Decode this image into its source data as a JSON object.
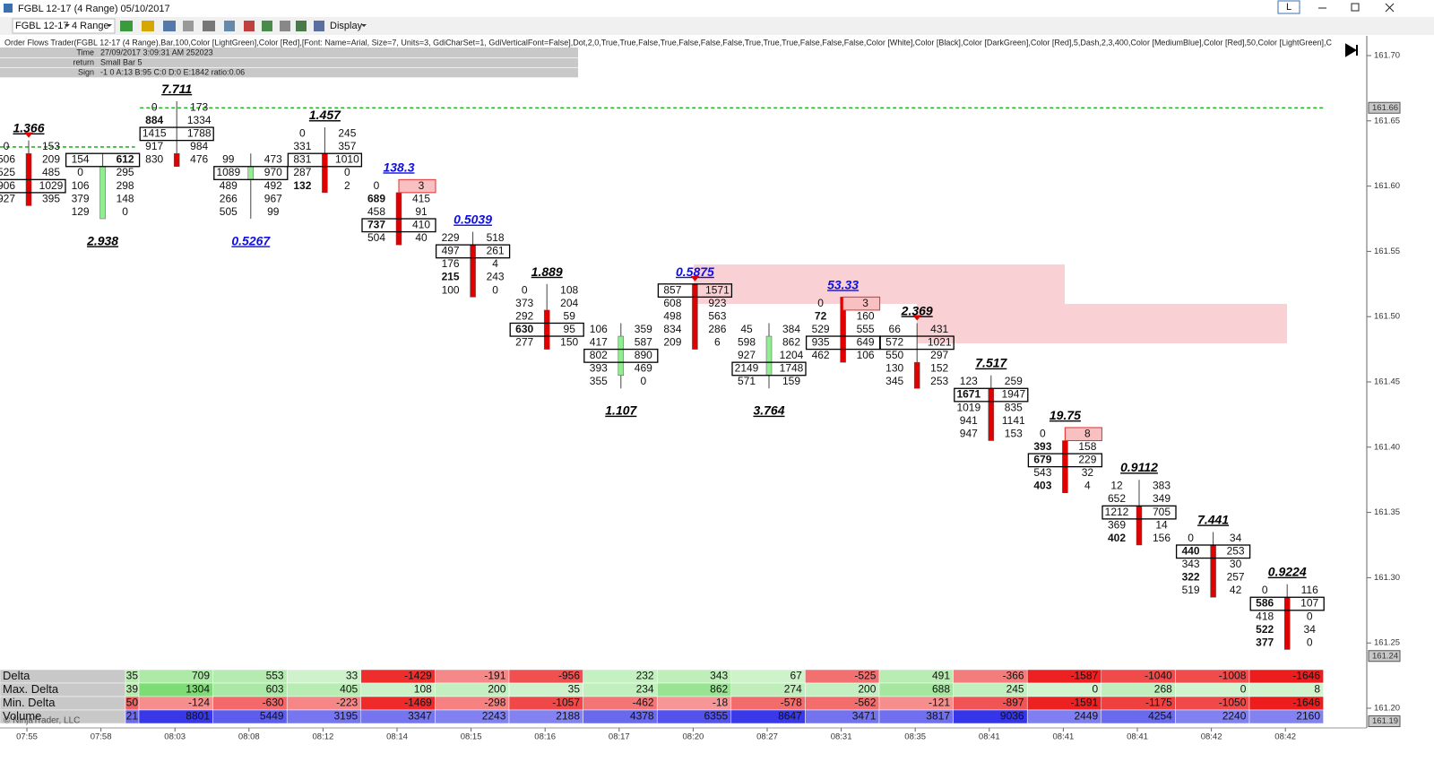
{
  "window": {
    "title": "FGBL 12-17 (4 Range)  05/10/2017",
    "badge": "L"
  },
  "toolbar": {
    "instrument": "FGBL 12-17",
    "interval": "4 Range",
    "display": "Display"
  },
  "indicator_label": "Order Flows Trader(FGBL 12-17 (4 Range),Bar,100,Color [LightGreen],Color [Red],[Font: Name=Arial, Size=7, Units=3, GdiCharSet=1, GdiVerticalFont=False],Dot,2,0,True,True,False,True,False,False,False,True,True,True,False,False,False,Color [White],Color [Black],Color [DarkGreen],Color [Red],5,Dash,2,3,400,Color [MediumBlue],Color [Red],50,Color [LightGreen],C",
  "info": [
    [
      "Time",
      "27/09/2017 3:09:31 AM 252023"
    ],
    [
      "return",
      "Small Bar 5"
    ],
    [
      "Sign",
      "-1 0 A:13 B:95 C:0 D:0 E:1842 ratio:0.06"
    ]
  ],
  "chart_data": {
    "type": "footprint",
    "ylim": [
      161.2,
      161.7
    ],
    "tick_size": 0.01,
    "yticks": [
      {
        "value": 161.7,
        "label": "161.70"
      },
      {
        "value": 161.65,
        "label": "161.65"
      },
      {
        "value": 161.6,
        "label": "161.60"
      },
      {
        "value": 161.55,
        "label": "161.55"
      },
      {
        "value": 161.5,
        "label": "161.50"
      },
      {
        "value": 161.45,
        "label": "161.45"
      },
      {
        "value": 161.4,
        "label": "161.40"
      },
      {
        "value": 161.35,
        "label": "161.35"
      },
      {
        "value": 161.3,
        "label": "161.30"
      },
      {
        "value": 161.25,
        "label": "161.25"
      },
      {
        "value": 161.2,
        "label": "161.20"
      }
    ],
    "price_markers": [
      {
        "value": 161.66,
        "label": "161.66"
      },
      {
        "value": 161.24,
        "label": "161.24"
      },
      {
        "value": 161.19,
        "label": "161.19"
      }
    ],
    "time_axis": [
      "07:55",
      "07:58",
      "08:03",
      "08:08",
      "08:12",
      "08:14",
      "08:15",
      "08:16",
      "08:17",
      "08:20",
      "08:27",
      "08:31",
      "08:35",
      "08:41",
      "08:41",
      "08:41",
      "08:42",
      "08:42"
    ],
    "lines": [
      {
        "price": 161.66,
        "from_bar": 2,
        "color": "#00aa00"
      },
      {
        "price": 161.63,
        "from_bar": 0,
        "to_bar": 1,
        "color": "#00aa00"
      }
    ],
    "imbalance_color": "#e00000",
    "bars": [
      {
        "ratio": "1.366",
        "ratio_color": "#000000",
        "ratio_pos": "above",
        "high": 161.63,
        "rows": [
          [
            0,
            153
          ],
          [
            506,
            209
          ],
          [
            525,
            485
          ],
          [
            906,
            1029
          ],
          [
            927,
            395
          ]
        ],
        "poc": 3,
        "open": 161.62,
        "close": 161.59,
        "candle_color": "#e00000",
        "red_bids": [],
        "down_arrow": true
      },
      {
        "ratio": "2.938",
        "ratio_color": "#000000",
        "ratio_pos": "below",
        "high": 161.62,
        "rows": [
          [
            154,
            612
          ],
          [
            0,
            295
          ],
          [
            106,
            298
          ],
          [
            379,
            148
          ],
          [
            129,
            0
          ]
        ],
        "poc": 0,
        "open": 161.58,
        "close": 161.61,
        "candle_color": "#90ee90",
        "red_bids": [],
        "blue_asks": [
          0
        ]
      },
      {
        "ratio": "7.711",
        "ratio_color": "#000000",
        "ratio_pos": "above",
        "high": 161.66,
        "rows": [
          [
            0,
            173
          ],
          [
            884,
            1334
          ],
          [
            1415,
            1788
          ],
          [
            917,
            984
          ],
          [
            830,
            476
          ]
        ],
        "poc": 2,
        "open": 161.62,
        "close": 161.62,
        "candle_color": "#e00000",
        "red_bids": [
          1
        ]
      },
      {
        "ratio": "0.5267",
        "ratio_color": "#1010e0",
        "ratio_pos": "below",
        "high": 161.62,
        "rows": [
          [
            99,
            473
          ],
          [
            1089,
            970
          ],
          [
            489,
            492
          ],
          [
            266,
            967
          ],
          [
            505,
            99
          ]
        ],
        "poc": 1,
        "open": 161.61,
        "close": 161.61,
        "candle_color": "#90ee90",
        "red_bids": []
      },
      {
        "ratio": "1.457",
        "ratio_color": "#000000",
        "ratio_pos": "above",
        "high": 161.64,
        "rows": [
          [
            0,
            245
          ],
          [
            331,
            357
          ],
          [
            831,
            1010
          ],
          [
            287,
            0
          ],
          [
            132,
            2
          ]
        ],
        "poc": 2,
        "open": 161.62,
        "close": 161.6,
        "candle_color": "#e00000",
        "red_bids": [
          4
        ]
      },
      {
        "ratio": "138.3",
        "ratio_color": "#1010e0",
        "ratio_pos": "above",
        "high": 161.6,
        "rows": [
          [
            0,
            3
          ],
          [
            689,
            415
          ],
          [
            458,
            91
          ],
          [
            737,
            410
          ],
          [
            504,
            40
          ]
        ],
        "poc": 3,
        "open": 161.59,
        "close": 161.56,
        "candle_color": "#e00000",
        "red_bids": [
          1,
          3
        ],
        "unfinished": true
      },
      {
        "ratio": "0.5039",
        "ratio_color": "#1010e0",
        "ratio_pos": "above",
        "high": 161.56,
        "rows": [
          [
            229,
            518
          ],
          [
            497,
            261
          ],
          [
            176,
            4
          ],
          [
            215,
            243
          ],
          [
            100,
            0
          ]
        ],
        "poc": 1,
        "open": 161.55,
        "close": 161.52,
        "candle_color": "#e00000",
        "red_bids": [
          3
        ]
      },
      {
        "ratio": "1.889",
        "ratio_color": "#000000",
        "ratio_pos": "above",
        "high": 161.52,
        "rows": [
          [
            0,
            108
          ],
          [
            373,
            204
          ],
          [
            292,
            59
          ],
          [
            630,
            95
          ],
          [
            277,
            150
          ]
        ],
        "poc": 3,
        "open": 161.5,
        "close": 161.48,
        "candle_color": "#e00000",
        "red_bids": [
          3
        ]
      },
      {
        "ratio": "1.107",
        "ratio_color": "#000000",
        "ratio_pos": "below",
        "high": 161.49,
        "rows": [
          [
            106,
            359
          ],
          [
            417,
            587
          ],
          [
            802,
            890
          ],
          [
            393,
            469
          ],
          [
            355,
            0
          ]
        ],
        "poc": 2,
        "open": 161.46,
        "close": 161.48,
        "candle_color": "#90ee90",
        "red_bids": []
      },
      {
        "ratio": "0.5875",
        "ratio_color": "#1010e0",
        "ratio_pos": "above",
        "high": 161.52,
        "rows": [
          [
            857,
            1571
          ],
          [
            608,
            923
          ],
          [
            498,
            563
          ],
          [
            834,
            286
          ],
          [
            209,
            6
          ]
        ],
        "poc": 0,
        "open": 161.52,
        "close": 161.48,
        "candle_color": "#e00000",
        "red_bids": [],
        "down_arrow": true
      },
      {
        "ratio": "3.764",
        "ratio_color": "#000000",
        "ratio_pos": "below",
        "high": 161.49,
        "rows": [
          [
            45,
            384
          ],
          [
            598,
            862
          ],
          [
            927,
            1204
          ],
          [
            2149,
            1748
          ],
          [
            571,
            159
          ]
        ],
        "poc": 3,
        "open": 161.46,
        "close": 161.48,
        "candle_color": "#90ee90",
        "red_bids": []
      },
      {
        "ratio": "53.33",
        "ratio_color": "#1010e0",
        "ratio_pos": "above",
        "high": 161.51,
        "rows": [
          [
            0,
            3
          ],
          [
            72,
            160
          ],
          [
            529,
            555
          ],
          [
            935,
            649
          ],
          [
            462,
            106
          ]
        ],
        "poc": 3,
        "open": 161.51,
        "close": 161.47,
        "candle_color": "#e00000",
        "red_bids": [
          1
        ],
        "unfinished": true
      },
      {
        "ratio": "2.369",
        "ratio_color": "#000000",
        "ratio_pos": "above",
        "high": 161.49,
        "rows": [
          [
            66,
            431
          ],
          [
            572,
            1021
          ],
          [
            550,
            297
          ],
          [
            130,
            152
          ],
          [
            345,
            253
          ]
        ],
        "poc": 1,
        "open": 161.46,
        "close": 161.45,
        "candle_color": "#e00000",
        "red_bids": [],
        "down_arrow": true
      },
      {
        "ratio": "7.517",
        "ratio_color": "#000000",
        "ratio_pos": "above",
        "high": 161.45,
        "rows": [
          [
            123,
            259
          ],
          [
            1671,
            1947
          ],
          [
            1019,
            835
          ],
          [
            941,
            1141
          ],
          [
            947,
            153
          ]
        ],
        "poc": 1,
        "open": 161.44,
        "close": 161.41,
        "candle_color": "#e00000",
        "red_bids": [
          1
        ]
      },
      {
        "ratio": "19.75",
        "ratio_color": "#000000",
        "ratio_pos": "above",
        "high": 161.41,
        "rows": [
          [
            0,
            8
          ],
          [
            393,
            158
          ],
          [
            679,
            229
          ],
          [
            543,
            32
          ],
          [
            403,
            4
          ]
        ],
        "poc": 2,
        "open": 161.4,
        "close": 161.37,
        "candle_color": "#e00000",
        "red_bids": [
          1,
          2,
          4
        ],
        "unfinished": true
      },
      {
        "ratio": "0.9112",
        "ratio_color": "#000000",
        "ratio_pos": "above",
        "high": 161.37,
        "rows": [
          [
            12,
            383
          ],
          [
            652,
            349
          ],
          [
            1212,
            705
          ],
          [
            369,
            14
          ],
          [
            402,
            156
          ]
        ],
        "poc": 2,
        "open": 161.35,
        "close": 161.33,
        "candle_color": "#e00000",
        "red_bids": [
          4
        ]
      },
      {
        "ratio": "7.441",
        "ratio_color": "#000000",
        "ratio_pos": "above",
        "high": 161.33,
        "rows": [
          [
            0,
            34
          ],
          [
            440,
            253
          ],
          [
            343,
            30
          ],
          [
            322,
            257
          ],
          [
            519,
            42
          ]
        ],
        "poc": 1,
        "open": 161.32,
        "close": 161.29,
        "candle_color": "#e00000",
        "red_bids": [
          1,
          3
        ]
      },
      {
        "ratio": "0.9224",
        "ratio_color": "#000000",
        "ratio_pos": "above",
        "high": 161.29,
        "rows": [
          [
            0,
            116
          ],
          [
            586,
            107
          ],
          [
            418,
            0
          ],
          [
            522,
            34
          ],
          [
            377,
            0
          ]
        ],
        "poc": 1,
        "open": 161.28,
        "close": 161.25,
        "candle_color": "#e00000",
        "red_bids": [
          1,
          3,
          4
        ]
      }
    ],
    "stats": {
      "labels": [
        "Delta",
        "Max. Delta",
        "Min. Delta",
        "Volume"
      ],
      "clipped": [
        "35",
        "39",
        "50",
        "21"
      ],
      "rows": [
        [
          709,
          553,
          33,
          -1429,
          -191,
          -956,
          232,
          343,
          67,
          -525,
          491,
          -366,
          -1587,
          -1040,
          -1008,
          -1646
        ],
        [
          1304,
          603,
          405,
          108,
          200,
          35,
          234,
          862,
          274,
          200,
          688,
          245,
          0,
          268,
          0,
          8
        ],
        [
          -124,
          -630,
          -223,
          -1469,
          -298,
          -1057,
          -462,
          -18,
          -578,
          -562,
          -121,
          -897,
          -1591,
          -1175,
          -1050,
          -1646
        ],
        [
          8801,
          5449,
          3195,
          3347,
          2243,
          2188,
          4378,
          6355,
          8647,
          3471,
          3817,
          9036,
          2449,
          4254,
          2240,
          2160
        ]
      ]
    },
    "watermark": "© NinjaTrader, LLC"
  }
}
